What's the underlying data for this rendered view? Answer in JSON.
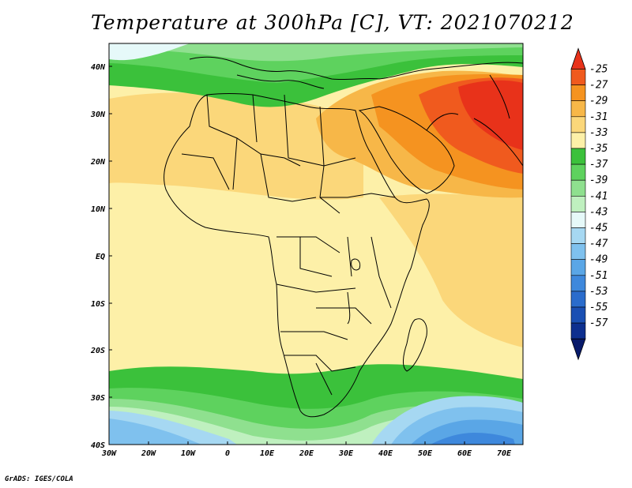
{
  "title": "Temperature at 300hPa [C], VT: 2021070212",
  "credit": "GrADS: IGES/COLA",
  "lat_labels": [
    "40N",
    "30N",
    "20N",
    "10N",
    "EQ",
    "10S",
    "20S",
    "30S",
    "40S"
  ],
  "lon_labels": [
    "30W",
    "20W",
    "10W",
    "0",
    "10E",
    "20E",
    "30E",
    "40E",
    "50E",
    "60E",
    "70E"
  ],
  "colorbar": {
    "labels": [
      "-25",
      "-27",
      "-29",
      "-31",
      "-33",
      "-35",
      "-37",
      "-39",
      "-41",
      "-43",
      "-45",
      "-47",
      "-49",
      "-51",
      "-53",
      "-55",
      "-57"
    ],
    "colors": [
      "#e8321a",
      "#f05a1e",
      "#f59320",
      "#f7b748",
      "#fbd77a",
      "#fdf0a8",
      "#3bc13b",
      "#5ed25e",
      "#8fe08f",
      "#bff0bf",
      "#e6f9f9",
      "#a6d8f2",
      "#7fc1ee",
      "#5aa6e6",
      "#3e88dc",
      "#2a6ccc",
      "#1a4fb3",
      "#0d2f8f",
      "#081a6a"
    ]
  },
  "regions": {
    "hot_core": "-25",
    "sahara": "-33",
    "southern_mid": "-37",
    "southern_ocean": "-47"
  }
}
